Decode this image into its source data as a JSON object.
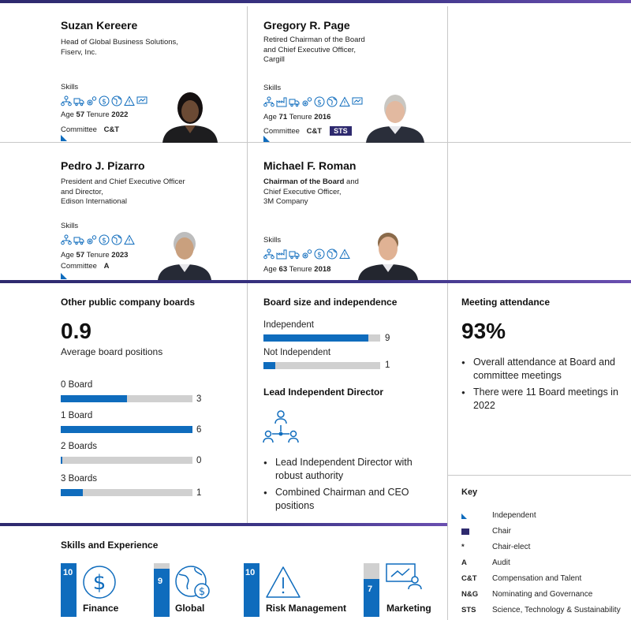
{
  "directors": [
    {
      "name": "Suzan Kereere",
      "role_lines": [
        "Head of Global Business Solutions,",
        "Fiserv, Inc."
      ],
      "skills_label": "Skills",
      "age_label": "Age",
      "age": "57",
      "tenure_label": "Tenure",
      "tenure": "2022",
      "committee_label": "Committee",
      "committees": "C&T",
      "independent": true
    },
    {
      "name": "Gregory R. Page",
      "role_lines": [
        "Retired Chairman of the Board",
        "and Chief Executive Officer,",
        "Cargill"
      ],
      "skills_label": "Skills",
      "age_label": "Age",
      "age": "71",
      "tenure_label": "Tenure",
      "tenure": "2016",
      "committee_label": "Committee",
      "committees": "C&T",
      "chair_committee": "STS",
      "independent": true
    },
    {
      "name": "Pedro J. Pizarro",
      "role_lines": [
        "President and Chief Executive Officer",
        "and Director,",
        "Edison International"
      ],
      "skills_label": "Skills",
      "age_label": "Age",
      "age": "57",
      "tenure_label": "Tenure",
      "tenure": "2023",
      "committee_label": "Committee",
      "committees": "A",
      "independent": true
    },
    {
      "name": "Michael F. Roman",
      "role_bold": "Chairman of the Board",
      "role_rest": " and",
      "role_lines": [
        "Chief Executive Officer,",
        "3M Company"
      ],
      "skills_label": "Skills",
      "age_label": "Age",
      "age": "63",
      "tenure_label": "Tenure",
      "tenure": "2018"
    }
  ],
  "other_boards": {
    "title": "Other public company boards",
    "average": "0.9",
    "average_label": "Average board positions",
    "rows": [
      {
        "label": "0 Board",
        "value": 3,
        "value_text": "3"
      },
      {
        "label": "1 Board",
        "value": 6,
        "value_text": "6"
      },
      {
        "label": "2 Boards",
        "value": 0,
        "value_text": "0"
      },
      {
        "label": "3 Boards",
        "value": 1,
        "value_text": "1"
      }
    ],
    "max": 6
  },
  "board_size": {
    "title": "Board size and independence",
    "rows": [
      {
        "label": "Independent",
        "value": 9,
        "value_text": "9"
      },
      {
        "label": "Not Independent",
        "value": 1,
        "value_text": "1"
      }
    ],
    "max": 10
  },
  "lead_director": {
    "title": "Lead Independent Director",
    "bullets": [
      "Lead Independent Director with robust authority",
      "Combined Chairman and CEO positions"
    ]
  },
  "attendance": {
    "title": "Meeting attendance",
    "percent": "93%",
    "bullets": [
      "Overall attendance at Board and committee meetings",
      "There were 11 Board meetings in 2022"
    ]
  },
  "key": {
    "title": "Key",
    "items": [
      {
        "symbol": "",
        "text": "Independent"
      },
      {
        "symbol": "",
        "text": "Chair"
      },
      {
        "symbol": "*",
        "text": "Chair-elect"
      },
      {
        "symbol": "A",
        "text": "Audit"
      },
      {
        "symbol": "C&T",
        "text": "Compensation and Talent"
      },
      {
        "symbol": "N&G",
        "text": "Nominating and Governance"
      },
      {
        "symbol": "STS",
        "text": "Science, Technology & Sustainability"
      }
    ]
  },
  "skills_experience": {
    "title": "Skills and Experience",
    "items": [
      {
        "name": "Finance",
        "value": 10,
        "value_text": "10",
        "icon": "dollar-icon"
      },
      {
        "name": "Global",
        "value": 9,
        "value_text": "9",
        "icon": "globe-icon"
      },
      {
        "name": "Risk Management",
        "value": 10,
        "value_text": "10",
        "icon": "warning-icon"
      },
      {
        "name": "Marketing",
        "value": 7,
        "value_text": "7",
        "icon": "presentation-icon"
      }
    ],
    "max": 10
  },
  "colors": {
    "accent": "#0f6cbd",
    "navy": "#2e2a6e",
    "grey": "#d0d0d0"
  }
}
